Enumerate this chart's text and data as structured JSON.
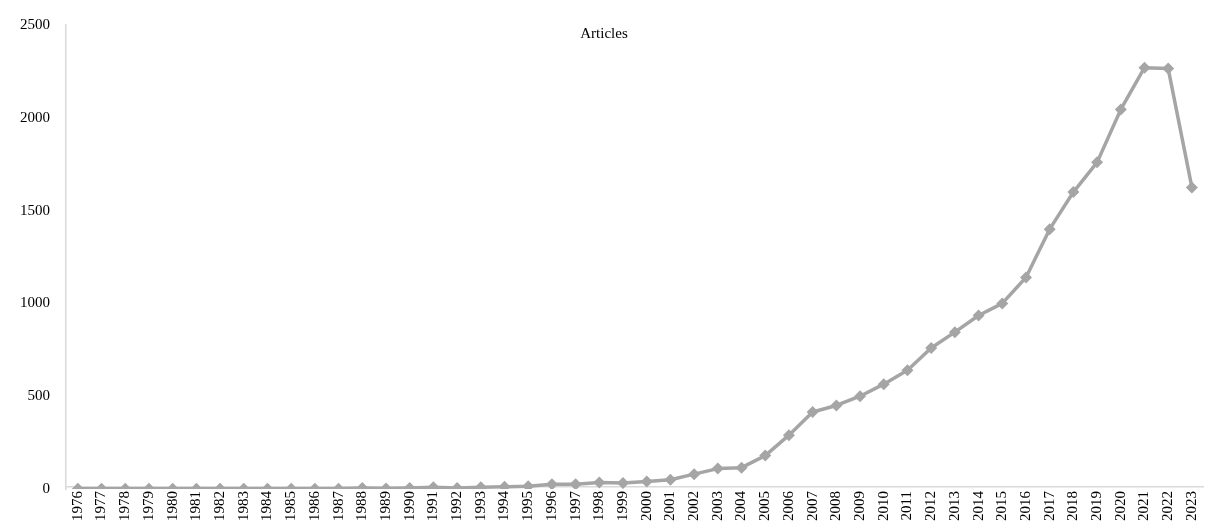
{
  "chart_data": {
    "type": "line",
    "title": "Articles",
    "categories": [
      "1976",
      "1977",
      "1978",
      "1979",
      "1980",
      "1981",
      "1982",
      "1983",
      "1984",
      "1985",
      "1986",
      "1987",
      "1988",
      "1989",
      "1990",
      "1991",
      "1992",
      "1993",
      "1994",
      "1995",
      "1996",
      "1997",
      "1998",
      "1999",
      "2000",
      "2001",
      "2002",
      "2003",
      "2004",
      "2005",
      "2006",
      "2007",
      "2008",
      "2009",
      "2010",
      "2011",
      "2012",
      "2013",
      "2014",
      "2015",
      "2016",
      "2017",
      "2018",
      "2019",
      "2020",
      "2021",
      "2022",
      "2023"
    ],
    "series": [
      {
        "color": "#a5a5a5",
        "values": [
          1,
          1,
          1,
          1,
          1,
          1,
          1,
          1,
          1,
          1,
          2,
          2,
          5,
          3,
          6,
          10,
          5,
          10,
          12,
          15,
          25,
          25,
          35,
          32,
          40,
          50,
          80,
          110,
          115,
          180,
          290,
          415,
          450,
          500,
          565,
          640,
          760,
          845,
          935,
          1000,
          1140,
          1400,
          1600,
          1760,
          2045,
          2270,
          2265,
          1625
        ]
      }
    ],
    "ylim": [
      0,
      2500
    ],
    "yticks": [
      0,
      500,
      1000,
      1500,
      2000,
      2500
    ],
    "grid": false,
    "legend": false,
    "marker": "diamond",
    "line_style": "solid"
  }
}
